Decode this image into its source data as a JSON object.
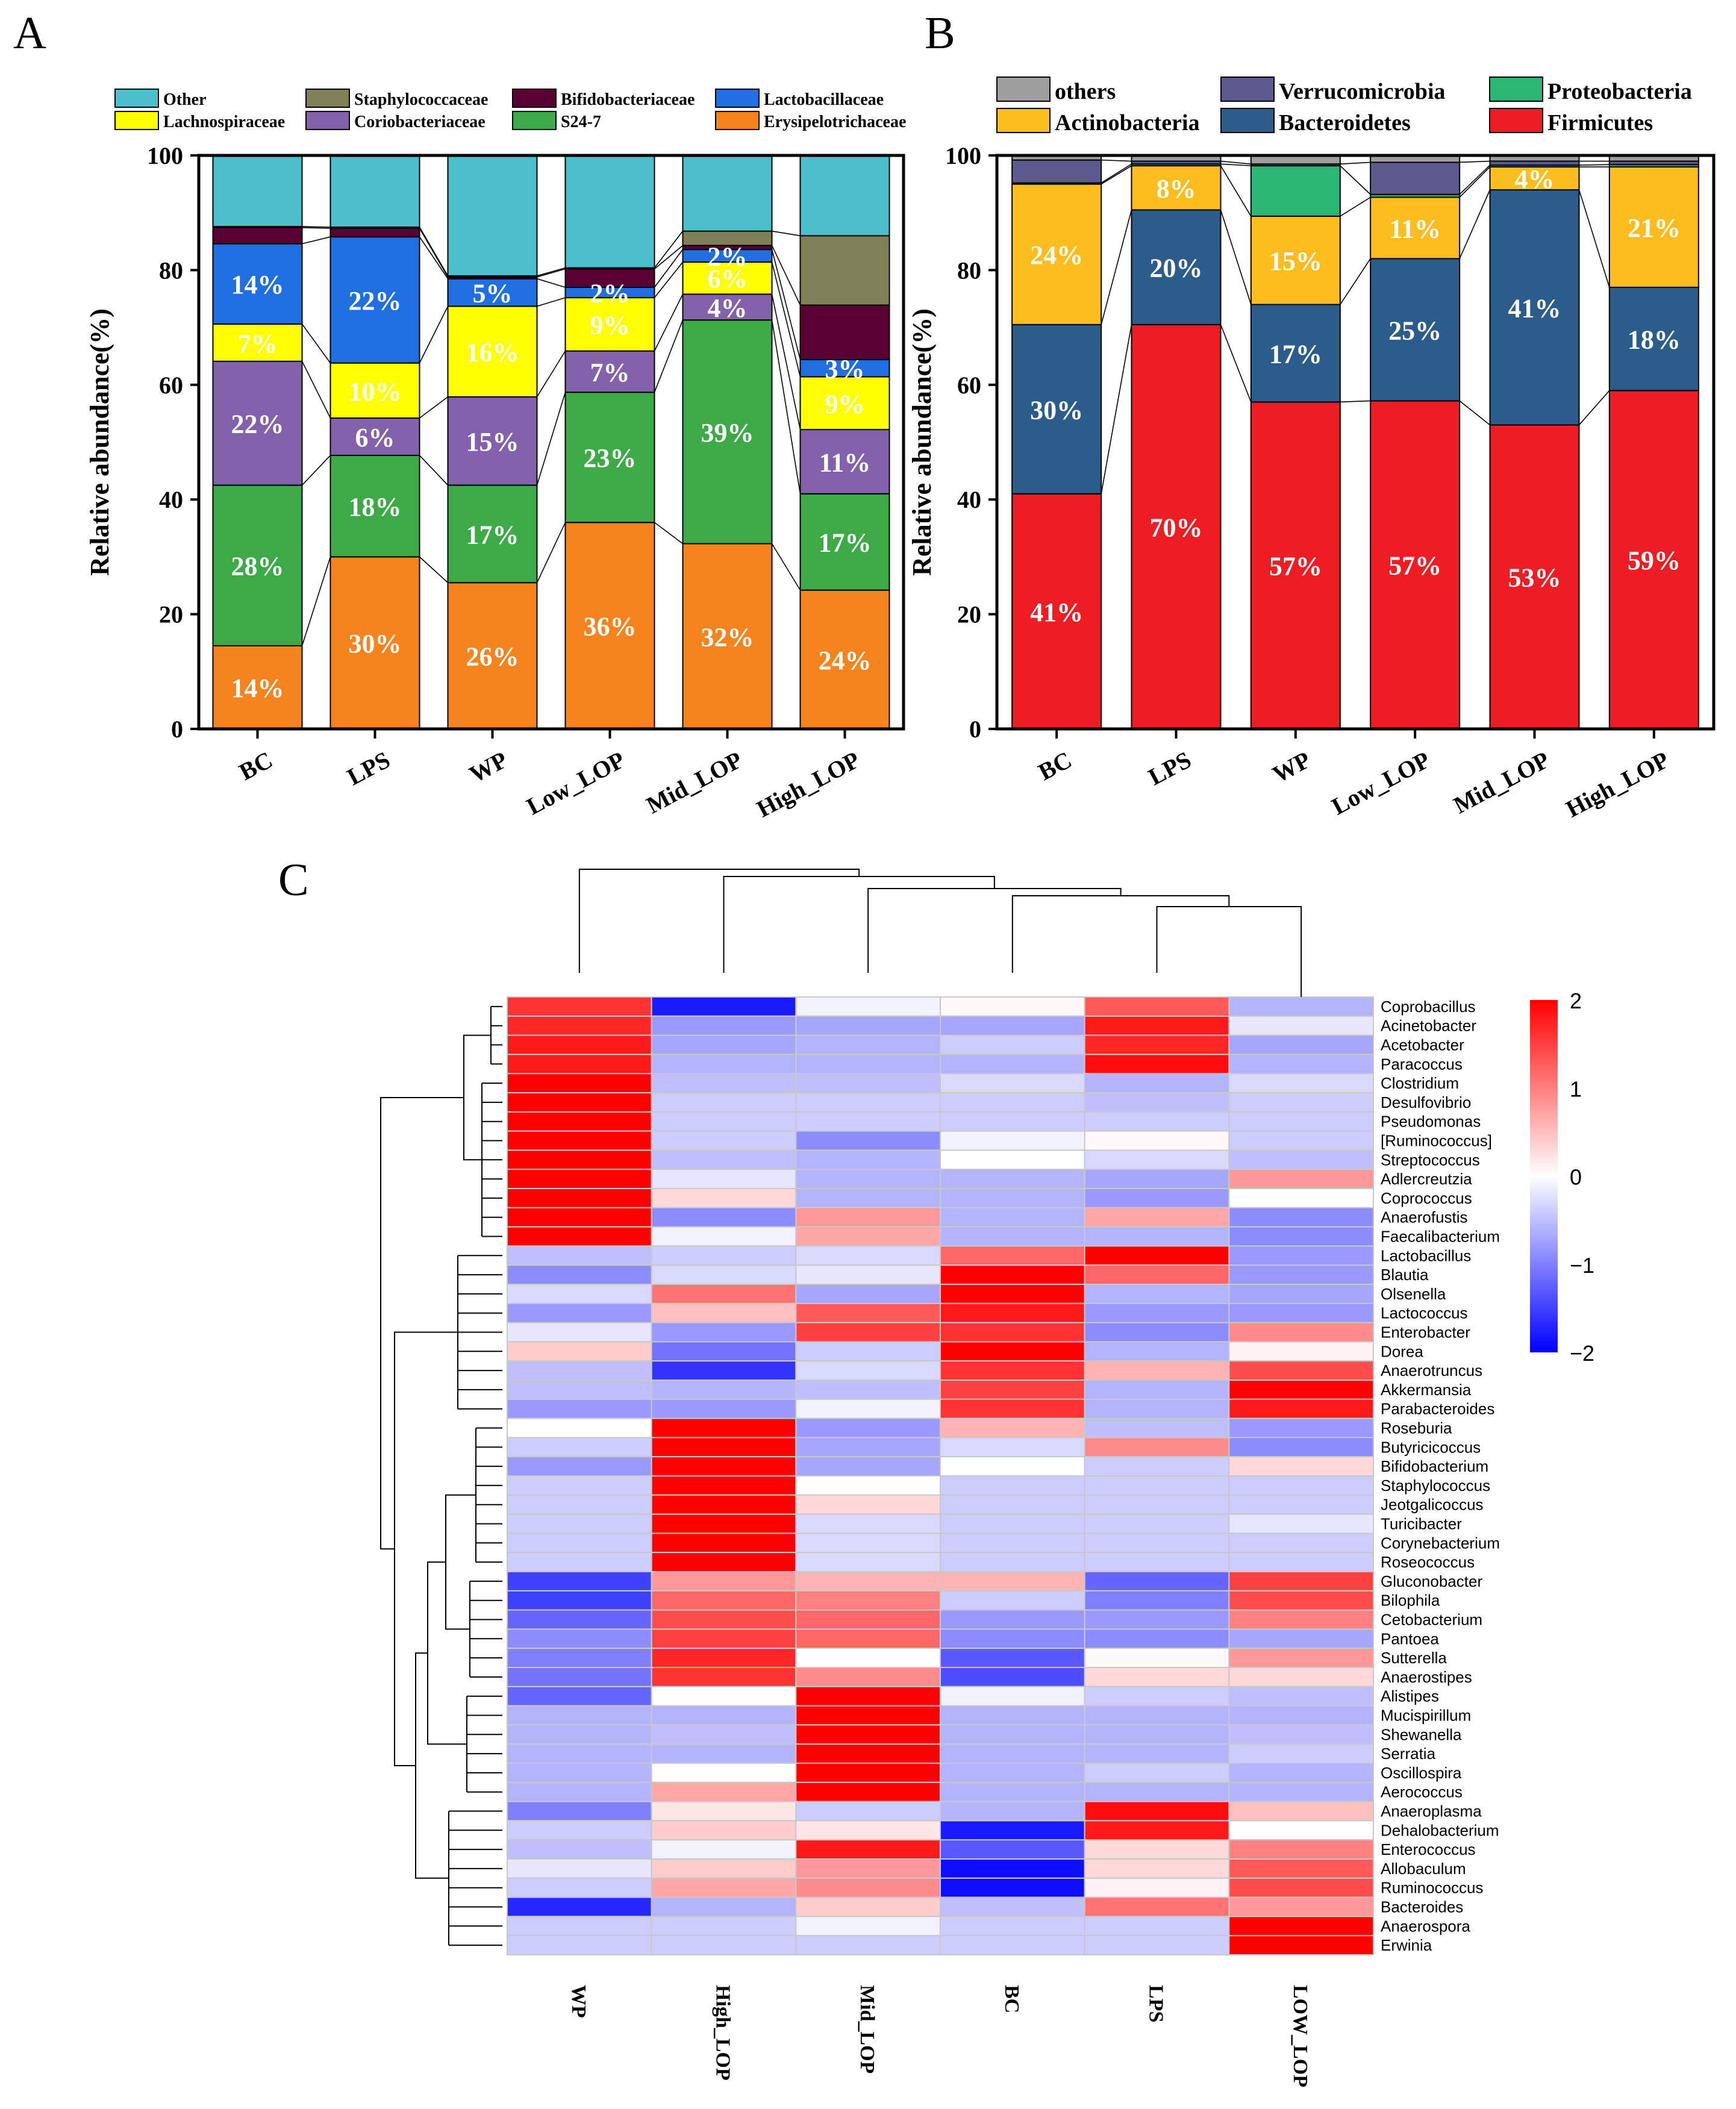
{
  "chart_data": [
    {
      "panel": "A",
      "type": "stacked-bar",
      "title": "",
      "xlabel": "",
      "ylabel": "Relative abundance(%)",
      "ylim": [
        0,
        100
      ],
      "yticks": [
        0,
        20,
        40,
        60,
        80,
        100
      ],
      "categories": [
        "BC",
        "LPS",
        "WP",
        "Low_LOP",
        "Mid_LOP",
        "High_LOP"
      ],
      "legend_order": [
        "Other",
        "Staphylococcaceae",
        "Bifidobacteriaceae",
        "Lactobacillaceae",
        "Lachnospiraceae",
        "Coriobacteriaceae",
        "S24-7",
        "Erysipelotrichaceae"
      ],
      "legend_position": "top",
      "series": [
        {
          "name": "Erysipelotrichaceae",
          "color": "#F5841F",
          "values": [
            14.5,
            30,
            25.5,
            36,
            32.3,
            24.2
          ],
          "labels": [
            "14%",
            "30%",
            "26%",
            "36%",
            "32%",
            "24%"
          ]
        },
        {
          "name": "S24-7",
          "color": "#3DAA48",
          "values": [
            28,
            17.7,
            17,
            22.7,
            39,
            16.8
          ],
          "labels": [
            "28%",
            "18%",
            "17%",
            "23%",
            "39%",
            "17%"
          ]
        },
        {
          "name": "Coriobacteriaceae",
          "color": "#8362AB",
          "values": [
            21.6,
            6.5,
            15.4,
            7.2,
            4.5,
            11.2
          ],
          "labels": [
            "22%",
            "6%",
            "15%",
            "7%",
            "4%",
            "11%"
          ]
        },
        {
          "name": "Lachnospiraceae",
          "color": "#FFFF00",
          "values": [
            6.5,
            9.6,
            15.8,
            9.3,
            5.6,
            9.2
          ],
          "labels": [
            "7%",
            "10%",
            "16%",
            "9%",
            "6%",
            "9%"
          ]
        },
        {
          "name": "Lactobacillaceae",
          "color": "#1F6FE0",
          "values": [
            14,
            22,
            4.8,
            1.8,
            2.2,
            3
          ],
          "labels": [
            "14%",
            "22%",
            "5%",
            "2%",
            "2%",
            "3%"
          ]
        },
        {
          "name": "Bifidobacteriaceae",
          "color": "#5A0033",
          "values": [
            2.8,
            1.5,
            0.3,
            3.2,
            0.7,
            9.5
          ],
          "labels": [
            "",
            "",
            "",
            "",
            "",
            ""
          ]
        },
        {
          "name": "Staphylococcaceae",
          "color": "#7F7F58",
          "values": [
            0.2,
            0.2,
            0.2,
            0.2,
            2.5,
            12.1
          ],
          "labels": [
            "",
            "",
            "",
            "",
            "",
            ""
          ]
        },
        {
          "name": "Other",
          "color": "#4BBFCC",
          "values": [
            12.4,
            12.5,
            21,
            19.6,
            13.2,
            14
          ],
          "labels": [
            "",
            "",
            "",
            "",
            "",
            ""
          ]
        }
      ]
    },
    {
      "panel": "B",
      "type": "stacked-bar",
      "title": "",
      "xlabel": "",
      "ylabel": "Relative abundance(%)",
      "ylim": [
        0,
        100
      ],
      "yticks": [
        0,
        20,
        40,
        60,
        80,
        100
      ],
      "categories": [
        "BC",
        "LPS",
        "WP",
        "Low_LOP",
        "Mid_LOP",
        "High_LOP"
      ],
      "legend_order": [
        "others",
        "Verrucomicrobia",
        "Proteobacteria",
        "Actinobacteria",
        "Bacteroidetes",
        "Firmicutes"
      ],
      "legend_position": "top",
      "series": [
        {
          "name": "Firmicutes",
          "color": "#EE1C23",
          "values": [
            41,
            70.5,
            57,
            57.2,
            53,
            59
          ],
          "labels": [
            "41%",
            "70%",
            "57%",
            "57%",
            "53%",
            "59%"
          ]
        },
        {
          "name": "Bacteroidetes",
          "color": "#2B5C8A",
          "values": [
            29.5,
            20,
            17,
            24.8,
            41,
            18
          ],
          "labels": [
            "30%",
            "20%",
            "17%",
            "25%",
            "41%",
            "18%"
          ]
        },
        {
          "name": "Actinobacteria",
          "color": "#FDBD1F",
          "values": [
            24.5,
            7.7,
            15.4,
            10.7,
            4,
            21
          ],
          "labels": [
            "24%",
            "8%",
            "15%",
            "11%",
            "4%",
            "21%"
          ]
        },
        {
          "name": "Proteobacteria",
          "color": "#2BB673",
          "values": [
            0.2,
            0.3,
            8.8,
            0.5,
            0.3,
            0.4
          ],
          "labels": [
            "",
            "",
            "",
            "",
            "",
            ""
          ]
        },
        {
          "name": "Verrucomicrobia",
          "color": "#5C5A8E",
          "values": [
            4,
            0.5,
            0.3,
            5.6,
            0.7,
            0.6
          ],
          "labels": [
            "",
            "",
            "",
            "",
            "",
            ""
          ]
        },
        {
          "name": "others",
          "color": "#9E9E9E",
          "values": [
            0.8,
            1,
            1.5,
            1.2,
            1,
            1
          ],
          "labels": [
            "",
            "",
            "",
            "",
            "",
            ""
          ]
        }
      ]
    },
    {
      "panel": "C",
      "type": "heatmap",
      "title": "",
      "columns": [
        "WP",
        "High_LOP",
        "Mid_LOP",
        "BC",
        "LPS",
        "LOW_LOP"
      ],
      "rows": [
        "Coprobacillus",
        "Acinetobacter",
        "Acetobacter",
        "Paracoccus",
        "Clostridium",
        "Desulfovibrio",
        "Pseudomonas",
        "[Ruminococcus]",
        "Streptococcus",
        "Adlercreutzia",
        "Coprococcus",
        "Anaerofustis",
        "Faecalibacterium",
        "Lactobacillus",
        "Blautia",
        "Olsenella",
        "Lactococcus",
        "Enterobacter",
        "Dorea",
        "Anaerotruncus",
        "Akkermansia",
        "Parabacteroides",
        "Roseburia",
        "Butyricicoccus",
        "Bifidobacterium",
        "Staphylococcus",
        "Jeotgalicoccus",
        "Turicibacter",
        "Corynebacterium",
        "Roseococcus",
        "Gluconobacter",
        "Bilophila",
        "Cetobacterium",
        "Pantoea",
        "Sutterella",
        "Anaerostipes",
        "Alistipes",
        "Mucispirillum",
        "Shewanella",
        "Serratia",
        "Oscillospira",
        "Aerococcus",
        "Anaeroplasma",
        "Dehalobacterium",
        "Enterococcus",
        "Allobaculum",
        "Ruminococcus",
        "Bacteroides",
        "Anaerospora",
        "Erwinia"
      ],
      "values": [
        [
          1.6,
          -1.8,
          -0.1,
          0.05,
          1.3,
          -0.6
        ],
        [
          1.7,
          -0.8,
          -0.7,
          -0.7,
          1.8,
          -0.2
        ],
        [
          1.8,
          -0.7,
          -0.6,
          -0.4,
          1.7,
          -0.7
        ],
        [
          1.8,
          -0.6,
          -0.6,
          -0.6,
          1.9,
          -0.6
        ],
        [
          2.2,
          -0.5,
          -0.5,
          -0.3,
          -0.6,
          -0.3
        ],
        [
          2.2,
          -0.4,
          -0.4,
          -0.4,
          -0.5,
          -0.4
        ],
        [
          2.2,
          -0.4,
          -0.4,
          -0.4,
          -0.4,
          -0.4
        ],
        [
          2.2,
          -0.4,
          -0.9,
          -0.1,
          0.05,
          -0.4
        ],
        [
          2.2,
          -0.5,
          -0.6,
          0.0,
          -0.3,
          -0.5
        ],
        [
          2.0,
          -0.2,
          -0.6,
          -0.6,
          -0.7,
          0.8
        ],
        [
          2.0,
          0.3,
          -0.6,
          -0.6,
          -0.8,
          0.0
        ],
        [
          2.0,
          -0.9,
          0.8,
          -0.6,
          0.7,
          -0.9
        ],
        [
          2.0,
          -0.1,
          0.7,
          -0.6,
          -0.6,
          -0.9
        ],
        [
          -0.5,
          -0.4,
          -0.3,
          1.2,
          2.0,
          -0.8
        ],
        [
          -0.9,
          -0.3,
          -0.2,
          2.0,
          1.2,
          -0.8
        ],
        [
          -0.3,
          1.1,
          -0.7,
          2.0,
          -0.6,
          -0.7
        ],
        [
          -0.8,
          0.5,
          1.3,
          1.8,
          -0.8,
          -0.8
        ],
        [
          -0.2,
          -0.8,
          1.5,
          1.6,
          -0.9,
          0.9
        ],
        [
          0.4,
          -1.1,
          -0.4,
          2.2,
          -0.6,
          0.1
        ],
        [
          -0.5,
          -1.6,
          -0.3,
          1.6,
          0.6,
          1.4
        ],
        [
          -0.5,
          -0.6,
          -0.5,
          1.5,
          -0.6,
          2.0
        ],
        [
          -0.8,
          -0.8,
          -0.1,
          1.6,
          -0.6,
          1.8
        ],
        [
          0.0,
          2.2,
          -0.8,
          0.6,
          -0.5,
          -0.8
        ],
        [
          -0.4,
          2.2,
          -0.7,
          -0.3,
          0.9,
          -0.9
        ],
        [
          -0.8,
          2.2,
          -0.7,
          0.0,
          -0.4,
          0.3
        ],
        [
          -0.4,
          2.2,
          0.0,
          -0.4,
          -0.4,
          -0.4
        ],
        [
          -0.4,
          2.2,
          0.3,
          -0.4,
          -0.4,
          -0.4
        ],
        [
          -0.4,
          2.2,
          -0.3,
          -0.4,
          -0.4,
          -0.2
        ],
        [
          -0.4,
          2.2,
          -0.3,
          -0.4,
          -0.4,
          -0.4
        ],
        [
          -0.4,
          2.2,
          -0.3,
          -0.4,
          -0.4,
          -0.4
        ],
        [
          -1.5,
          0.8,
          0.6,
          0.6,
          -1.2,
          1.5
        ],
        [
          -1.5,
          1.2,
          1.0,
          -0.4,
          -1.0,
          1.4
        ],
        [
          -1.2,
          1.4,
          1.2,
          -0.8,
          -0.8,
          1.0
        ],
        [
          -0.9,
          1.5,
          1.2,
          -0.9,
          -0.9,
          -0.7
        ],
        [
          -1.0,
          1.7,
          0.0,
          -1.3,
          0.05,
          0.8
        ],
        [
          -1.1,
          1.6,
          0.9,
          -1.4,
          0.3,
          0.3
        ],
        [
          -1.2,
          0.0,
          2.2,
          -0.1,
          -0.4,
          -0.5
        ],
        [
          -0.6,
          -0.6,
          2.2,
          -0.6,
          -0.6,
          -0.6
        ],
        [
          -0.6,
          -0.5,
          2.2,
          -0.6,
          -0.6,
          -0.5
        ],
        [
          -0.6,
          -0.6,
          2.2,
          -0.6,
          -0.6,
          -0.4
        ],
        [
          -0.6,
          0.0,
          2.2,
          -0.6,
          -0.4,
          -0.6
        ],
        [
          -0.6,
          0.7,
          2.2,
          -0.6,
          -0.6,
          -0.6
        ],
        [
          -1.0,
          0.2,
          -0.4,
          -0.6,
          1.9,
          0.5
        ],
        [
          -0.4,
          0.4,
          0.2,
          -1.8,
          1.8,
          0.0
        ],
        [
          -0.5,
          -0.1,
          1.8,
          -1.3,
          0.3,
          1.0
        ],
        [
          -0.2,
          0.4,
          0.8,
          -1.9,
          0.3,
          1.3
        ],
        [
          -0.4,
          0.7,
          0.9,
          -1.9,
          0.1,
          1.4
        ],
        [
          -1.7,
          -0.6,
          0.4,
          -0.5,
          1.1,
          0.8
        ],
        [
          -0.4,
          -0.4,
          -0.1,
          -0.4,
          -0.4,
          2.2
        ],
        [
          -0.4,
          -0.4,
          -0.4,
          -0.4,
          -0.4,
          2.2
        ]
      ],
      "colorbar": {
        "min": -2,
        "max": 2,
        "ticks": [
          "2",
          "1",
          "0",
          "−1",
          "−2"
        ],
        "low_color": "#0000FF",
        "mid_color": "#FFFFFF",
        "high_color": "#FF0000"
      }
    }
  ],
  "panel_labels": {
    "a": "A",
    "b": "B",
    "c": "C"
  }
}
